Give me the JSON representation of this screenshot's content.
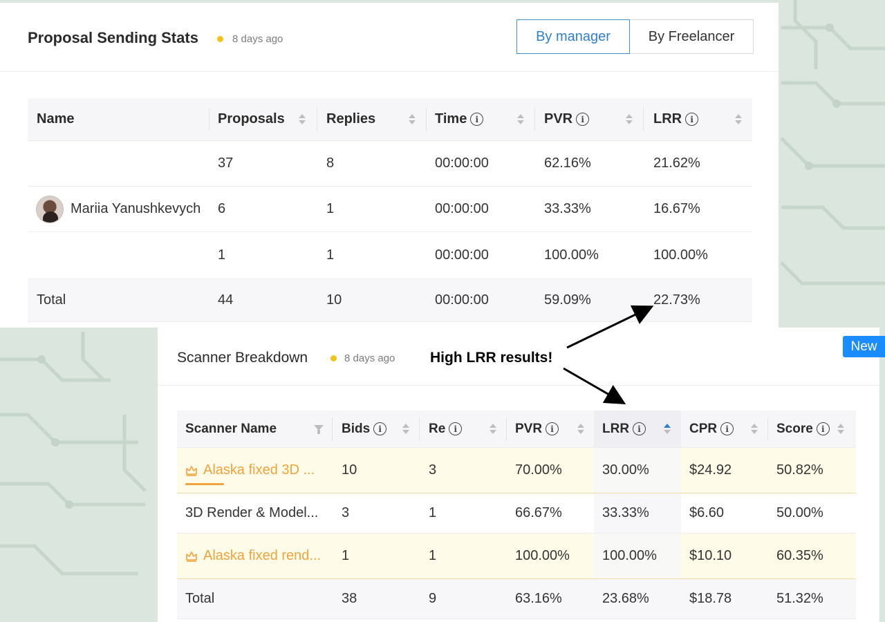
{
  "proposal_stats": {
    "title": "Proposal Sending Stats",
    "updated": "8 days ago",
    "toggle": {
      "by_manager": "By manager",
      "by_freelancer": "By Freelancer",
      "active": "by_manager"
    },
    "columns": [
      "Name",
      "Proposals",
      "Replies",
      "Time",
      "PVR",
      "LRR"
    ],
    "rows": [
      {
        "name": "",
        "proposals": "37",
        "replies": "8",
        "time": "00:00:00",
        "pvr": "62.16%",
        "lrr": "21.62%"
      },
      {
        "name": "Mariia Yanushkevych",
        "proposals": "6",
        "replies": "1",
        "time": "00:00:00",
        "pvr": "33.33%",
        "lrr": "16.67%"
      },
      {
        "name": "",
        "proposals": "1",
        "replies": "1",
        "time": "00:00:00",
        "pvr": "100.00%",
        "lrr": "100.00%"
      }
    ],
    "total": {
      "name": "Total",
      "proposals": "44",
      "replies": "10",
      "time": "00:00:00",
      "pvr": "59.09%",
      "lrr": "22.73%"
    }
  },
  "scanner_breakdown": {
    "title": "Scanner Breakdown",
    "updated": "8 days ago",
    "badge": "New",
    "columns": [
      "Scanner Name",
      "Bids",
      "Re",
      "PVR",
      "LRR",
      "CPR",
      "Score"
    ],
    "rows": [
      {
        "name": "Alaska fixed 3D ...",
        "bids": "10",
        "re": "3",
        "pvr": "70.00%",
        "lrr": "30.00%",
        "cpr": "$24.92",
        "score": "50.82%",
        "highlight": true
      },
      {
        "name": "3D Render & Model...",
        "bids": "3",
        "re": "1",
        "pvr": "66.67%",
        "lrr": "33.33%",
        "cpr": "$6.60",
        "score": "50.00%",
        "highlight": false
      },
      {
        "name": "Alaska fixed rend...",
        "bids": "1",
        "re": "1",
        "pvr": "100.00%",
        "lrr": "100.00%",
        "cpr": "$10.10",
        "score": "60.35%",
        "highlight": true
      }
    ],
    "total": {
      "name": "Total",
      "bids": "38",
      "re": "9",
      "pvr": "63.16%",
      "lrr": "23.68%",
      "cpr": "$18.78",
      "score": "51.32%"
    }
  },
  "annotation": {
    "text": "High LRR results!"
  },
  "icons": {
    "info": "info-icon",
    "sort": "sort-icon",
    "filter": "filter-icon",
    "crown": "crown-icon"
  },
  "colors": {
    "accent": "#2f7fd0",
    "status_dot": "#f2c318",
    "highlight_text": "#f0a33b",
    "badge": "#1a8cff"
  }
}
